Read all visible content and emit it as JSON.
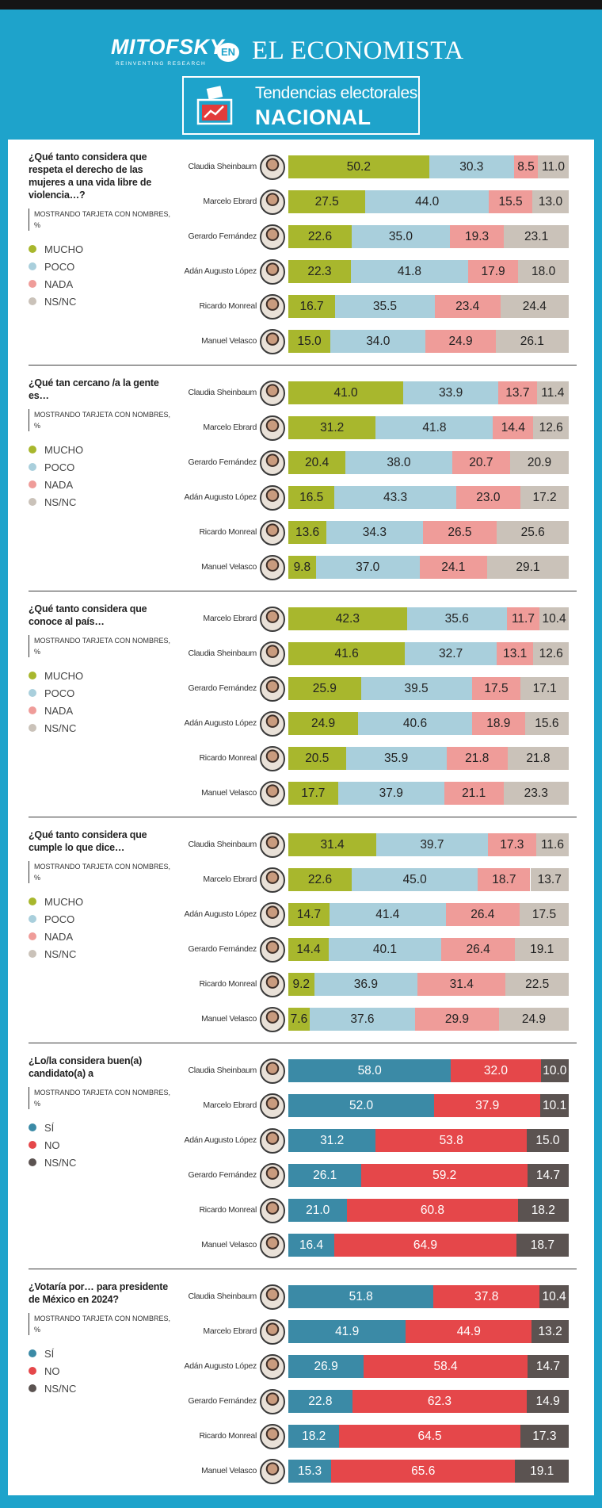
{
  "header": {
    "brand": "MITOFSKY",
    "tagline": "REINVENTING RESEARCH",
    "connector": "EN",
    "publisher": "EL ECONOMISTA",
    "title": "Tendencias electorales",
    "subtitle": "NACIONAL"
  },
  "chart_data": [
    {
      "type": "bar",
      "orientation": "horizontal",
      "stacked": true,
      "title": "¿Qué tanto considera que respeta el derecho de las mujeres a una vida libre de violencia…?",
      "subtitle": "MOSTRANDO TARJETA CON NOMBRES, %",
      "xlim": [
        0,
        100
      ],
      "categories": [
        "Claudia Sheinbaum",
        "Marcelo Ebrard",
        "Gerardo Fernández",
        "Adán Augusto López",
        "Ricardo Monreal",
        "Manuel Velasco"
      ],
      "series": [
        {
          "name": "MUCHO",
          "color": "#a8b72d",
          "values": [
            50.2,
            27.5,
            22.6,
            22.3,
            16.7,
            15.0
          ],
          "value_labels": [
            "50.2",
            "27.5",
            "22.6",
            "22.3",
            "16.7",
            "15.0"
          ]
        },
        {
          "name": "POCO",
          "color": "#a9cfdc",
          "values": [
            30.3,
            44.0,
            35.0,
            41.8,
            35.5,
            34.0
          ],
          "value_labels": [
            "30.3",
            "44.0",
            "35.0",
            "41.8",
            "35.5",
            "34.0"
          ]
        },
        {
          "name": "NADA",
          "color": "#ef9c99",
          "values": [
            8.5,
            15.5,
            19.3,
            17.9,
            23.4,
            24.9
          ],
          "value_labels": [
            "8.5",
            "15.5",
            "19.3",
            "17.9",
            "23.4",
            "24.9"
          ]
        },
        {
          "name": "NS/NC",
          "color": "#cac2b9",
          "values": [
            11.0,
            13.0,
            23.1,
            18.0,
            24.4,
            26.1
          ],
          "value_labels": [
            "11.0",
            "13.0",
            "23.1",
            "18.0",
            "24.4",
            "26.1"
          ]
        }
      ]
    },
    {
      "type": "bar",
      "orientation": "horizontal",
      "stacked": true,
      "title": "¿Qué tan cercano /a la gente es…",
      "subtitle": "MOSTRANDO TARJETA CON NOMBRES, %",
      "xlim": [
        0,
        100
      ],
      "categories": [
        "Claudia Sheinbaum",
        "Marcelo Ebrard",
        "Gerardo Fernández",
        "Adán Augusto López",
        "Ricardo Monreal",
        "Manuel Velasco"
      ],
      "series": [
        {
          "name": "MUCHO",
          "color": "#a8b72d",
          "values": [
            41.0,
            31.2,
            20.4,
            16.5,
            13.6,
            9.8
          ],
          "value_labels": [
            "41.0",
            "31.2",
            "20.4",
            "16.5",
            "13.6",
            "9.8"
          ]
        },
        {
          "name": "POCO",
          "color": "#a9cfdc",
          "values": [
            33.9,
            41.8,
            38.0,
            43.3,
            34.3,
            37.0
          ],
          "value_labels": [
            "33.9",
            "41.8",
            "38.0",
            "43.3",
            "34.3",
            "37.0"
          ]
        },
        {
          "name": "NADA",
          "color": "#ef9c99",
          "values": [
            13.7,
            14.4,
            20.7,
            23.0,
            26.5,
            24.1
          ],
          "value_labels": [
            "13.7",
            "14.4",
            "20.7",
            "23.0",
            "26.5",
            "24.1"
          ]
        },
        {
          "name": "NS/NC",
          "color": "#cac2b9",
          "values": [
            11.4,
            12.6,
            20.9,
            17.2,
            25.6,
            29.1
          ],
          "value_labels": [
            "11.4",
            "12.6",
            "20.9",
            "17.2",
            "25.6",
            "29.1"
          ]
        }
      ]
    },
    {
      "type": "bar",
      "orientation": "horizontal",
      "stacked": true,
      "title": "¿Qué tanto considera que conoce al país…",
      "subtitle": "MOSTRANDO TARJETA CON NOMBRES, %",
      "xlim": [
        0,
        100
      ],
      "categories": [
        "Marcelo Ebrard",
        "Claudia Sheinbaum",
        "Gerardo Fernández",
        "Adán Augusto López",
        "Ricardo Monreal",
        "Manuel Velasco"
      ],
      "series": [
        {
          "name": "MUCHO",
          "color": "#a8b72d",
          "values": [
            42.3,
            41.6,
            25.9,
            24.9,
            20.5,
            17.7
          ],
          "value_labels": [
            "42.3",
            "41.6",
            "25.9",
            "24.9",
            "20.5",
            "17.7"
          ]
        },
        {
          "name": "POCO",
          "color": "#a9cfdc",
          "values": [
            35.6,
            32.7,
            39.5,
            40.6,
            35.9,
            37.9
          ],
          "value_labels": [
            "35.6",
            "32.7",
            "39.5",
            "40.6",
            "35.9",
            "37.9"
          ]
        },
        {
          "name": "NADA",
          "color": "#ef9c99",
          "values": [
            11.7,
            13.1,
            17.5,
            18.9,
            21.8,
            21.1
          ],
          "value_labels": [
            "11.7",
            "13.1",
            "17.5",
            "18.9",
            "21.8",
            "21.1"
          ]
        },
        {
          "name": "NS/NC",
          "color": "#cac2b9",
          "values": [
            10.4,
            12.6,
            17.1,
            15.6,
            21.8,
            23.3
          ],
          "value_labels": [
            "10.4",
            "12.6",
            "17.1",
            "15.6",
            "21.8",
            "23.3"
          ]
        }
      ]
    },
    {
      "type": "bar",
      "orientation": "horizontal",
      "stacked": true,
      "title": "¿Qué tanto considera que cumple lo que dice…",
      "subtitle": "MOSTRANDO TARJETA CON NOMBRES, %",
      "xlim": [
        0,
        100
      ],
      "categories": [
        "Claudia Sheinbaum",
        "Marcelo Ebrard",
        "Adán Augusto López",
        "Gerardo Fernández",
        "Ricardo Monreal",
        "Manuel Velasco"
      ],
      "series": [
        {
          "name": "MUCHO",
          "color": "#a8b72d",
          "values": [
            31.4,
            22.6,
            14.7,
            14.4,
            9.2,
            7.6
          ],
          "value_labels": [
            "31.4",
            "22.6",
            "14.7",
            "14.4",
            "9.2",
            "7.6"
          ]
        },
        {
          "name": "POCO",
          "color": "#a9cfdc",
          "values": [
            39.7,
            45.0,
            41.4,
            40.1,
            36.9,
            37.6
          ],
          "value_labels": [
            "39.7",
            "45.0",
            "41.4",
            "40.1",
            "36.9",
            "37.6"
          ]
        },
        {
          "name": "NADA",
          "color": "#ef9c99",
          "values": [
            17.3,
            18.7,
            26.4,
            26.4,
            31.4,
            29.9
          ],
          "value_labels": [
            "17.3",
            "18.7",
            "26.4",
            "26.4",
            "31.4",
            "29.9"
          ]
        },
        {
          "name": "NS/NC",
          "color": "#cac2b9",
          "values": [
            11.6,
            13.7,
            17.5,
            19.1,
            22.5,
            24.9
          ],
          "value_labels": [
            "11.6",
            "13.7",
            "17.5",
            "19.1",
            "22.5",
            "24.9"
          ]
        }
      ]
    },
    {
      "type": "bar",
      "orientation": "horizontal",
      "stacked": true,
      "title": "¿Lo/la considera buen(a) candidato(a) a",
      "subtitle": "MOSTRANDO TARJETA CON NOMBRES, %",
      "xlim": [
        0,
        100
      ],
      "categories": [
        "Claudia Sheinbaum",
        "Marcelo Ebrard",
        "Adán Augusto López",
        "Gerardo Fernández",
        "Ricardo Monreal",
        "Manuel Velasco"
      ],
      "series": [
        {
          "name": "SÍ",
          "color": "#3b8aa6",
          "values": [
            58.0,
            52.0,
            31.2,
            26.1,
            21.0,
            16.4
          ],
          "value_labels": [
            "58.0",
            "52.0",
            "31.2",
            "26.1",
            "21.0",
            "16.4"
          ]
        },
        {
          "name": "NO",
          "color": "#e5474a",
          "values": [
            32.0,
            37.9,
            53.8,
            59.2,
            60.8,
            64.9
          ],
          "value_labels": [
            "32.0",
            "37.9",
            "53.8",
            "59.2",
            "60.8",
            "64.9"
          ]
        },
        {
          "name": "NS/NC",
          "color": "#5b5351",
          "values": [
            10.0,
            10.1,
            15.0,
            14.7,
            18.2,
            18.7
          ],
          "value_labels": [
            "10.0",
            "10.1",
            "15.0",
            "14.7",
            "18.2",
            "18.7"
          ]
        }
      ]
    },
    {
      "type": "bar",
      "orientation": "horizontal",
      "stacked": true,
      "title": "¿Votaría por… para presidente de México en 2024?",
      "subtitle": "MOSTRANDO TARJETA CON NOMBRES, %",
      "xlim": [
        0,
        100
      ],
      "categories": [
        "Claudia Sheinbaum",
        "Marcelo Ebrard",
        "Adán Augusto López",
        "Gerardo Fernández",
        "Ricardo Monreal",
        "Manuel Velasco"
      ],
      "series": [
        {
          "name": "SÍ",
          "color": "#3b8aa6",
          "values": [
            51.8,
            41.9,
            26.9,
            22.8,
            18.2,
            15.3
          ],
          "value_labels": [
            "51.8",
            "41.9",
            "26.9",
            "22.8",
            "18.2",
            "15.3"
          ]
        },
        {
          "name": "NO",
          "color": "#e5474a",
          "values": [
            37.8,
            44.9,
            58.4,
            62.3,
            64.5,
            65.6
          ],
          "value_labels": [
            "37.8",
            "44.9",
            "58.4",
            "62.3",
            "64.5",
            "65.6"
          ]
        },
        {
          "name": "NS/NC",
          "color": "#5b5351",
          "values": [
            10.4,
            13.2,
            14.7,
            14.9,
            17.3,
            19.1
          ],
          "value_labels": [
            "10.4",
            "13.2",
            "14.7",
            "14.9",
            "17.3",
            "19.1"
          ]
        }
      ]
    }
  ]
}
